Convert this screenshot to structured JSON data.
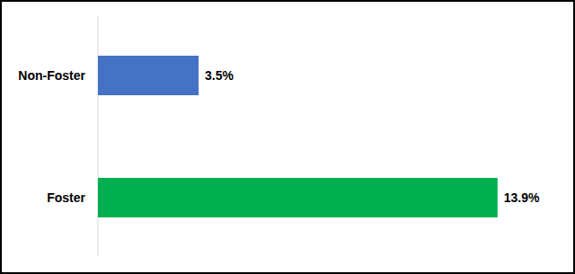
{
  "chart_data": {
    "type": "bar",
    "orientation": "horizontal",
    "categories": [
      "Non-Foster",
      "Foster"
    ],
    "values": [
      3.5,
      13.9
    ],
    "value_labels": [
      "3.5%",
      "13.9%"
    ],
    "colors": [
      "#4472c4",
      "#00b050"
    ],
    "xlim": [
      0,
      15
    ],
    "data_labels": true,
    "tick_labels": false,
    "grid": false
  }
}
